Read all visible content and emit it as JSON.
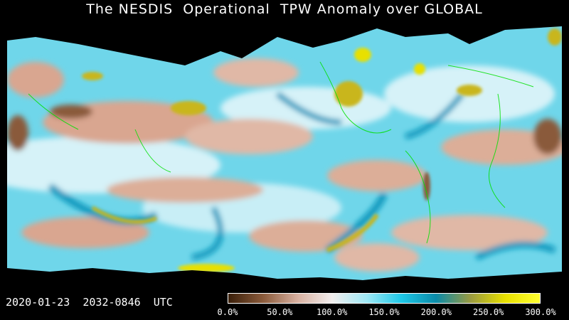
{
  "title": "The NESDIS  Operational  TPW Anomaly over GLOBAL",
  "timestamp": "2020-01-23  2032-0846  UTC",
  "colorbar": {
    "colors": [
      "#3a1f0a",
      "#8a5a3a",
      "#d8b0a0",
      "#f2eeee",
      "#9fe8f5",
      "#1ec8e8",
      "#0a8aa8",
      "#9a9a40",
      "#e8e000",
      "#ffff30"
    ],
    "ticks": [
      "0.0%",
      "50.0%",
      "100.0%",
      "150.0%",
      "200.0%",
      "250.0%",
      "300.0%"
    ]
  },
  "map_palette": {
    "no_data": "#000000",
    "dry": "#d9a690",
    "very_dry": "#8a5a3a",
    "normal": "#eaf6f8",
    "moist": "#27c3e0",
    "very_moist": "#0f98bd",
    "extreme": "#c9b61a",
    "coastline": "#00e000"
  }
}
